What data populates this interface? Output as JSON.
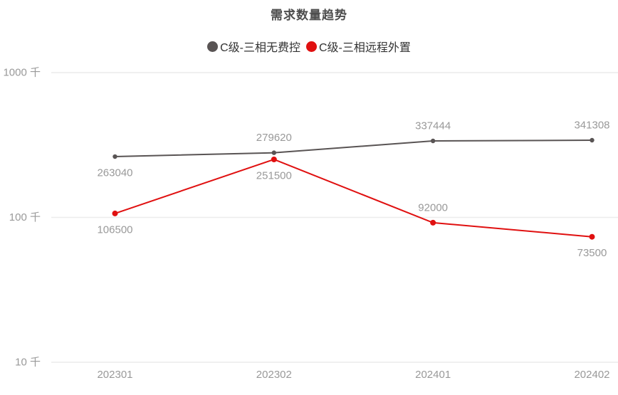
{
  "chart_data": {
    "type": "line",
    "title": "需求数量趋势",
    "x": [
      "202301",
      "202302",
      "202401",
      "202402"
    ],
    "series": [
      {
        "name": "C级-三相无费控",
        "color": "#595454",
        "values": [
          263040,
          279620,
          337444,
          341308
        ],
        "label_positions": [
          "below",
          "above",
          "above",
          "above"
        ]
      },
      {
        "name": "C级-三相远程外置",
        "color": "#e01010",
        "values": [
          106500,
          251500,
          92000,
          73500
        ],
        "label_positions": [
          "below",
          "below",
          "above",
          "below"
        ]
      }
    ],
    "y_axis": {
      "scale": "log",
      "ticks": [
        {
          "value": 10000,
          "label": "10 千"
        },
        {
          "value": 100000,
          "label": "100 千"
        },
        {
          "value": 1000000,
          "label": "1000 千"
        }
      ]
    },
    "grid": true,
    "legend_position": "top",
    "colors": {
      "grid_line": "#ececec",
      "axis_text": "#999999",
      "data_label_text": "#999999",
      "title_text": "#4d4d4d",
      "legend_text": "#333333",
      "background": "#ffffff"
    }
  }
}
